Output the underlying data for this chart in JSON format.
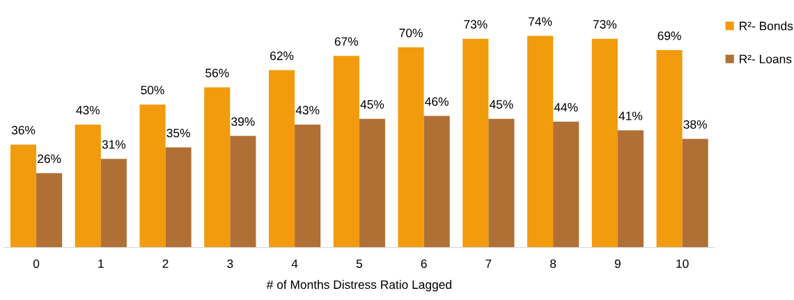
{
  "chart_data": {
    "type": "bar",
    "xlabel": "# of Months Distress Ratio Lagged",
    "categories": [
      "0",
      "1",
      "2",
      "3",
      "4",
      "5",
      "6",
      "7",
      "8",
      "9",
      "10"
    ],
    "series": [
      {
        "name": "R²- Bonds",
        "color": "#f29b0c",
        "values": [
          36,
          43,
          50,
          56,
          62,
          67,
          70,
          73,
          74,
          73,
          69
        ],
        "value_labels": [
          "36%",
          "43%",
          "50%",
          "56%",
          "62%",
          "67%",
          "70%",
          "73%",
          "74%",
          "73%",
          "69%"
        ]
      },
      {
        "name": "R²- Loans",
        "color": "#b07035",
        "values": [
          26,
          31,
          35,
          39,
          43,
          45,
          46,
          45,
          44,
          41,
          38
        ],
        "value_labels": [
          "26%",
          "31%",
          "35%",
          "39%",
          "43%",
          "45%",
          "46%",
          "45%",
          "44%",
          "41%",
          "38%"
        ]
      }
    ],
    "grid": false,
    "legend": "top right"
  }
}
